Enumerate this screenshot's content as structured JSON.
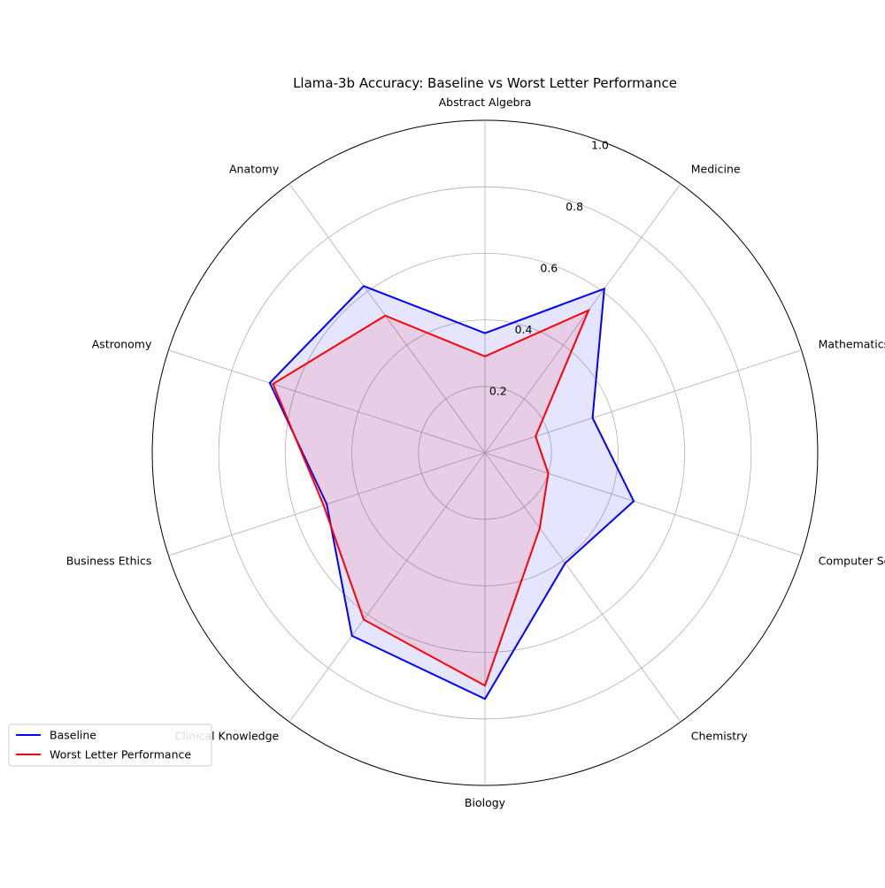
{
  "chart_data": {
    "type": "radar",
    "title": "Llama-3b Accuracy: Baseline vs Worst Letter Performance",
    "categories": [
      "Abstract Algebra",
      "Medicine",
      "Mathematics",
      "Computer Science",
      "Chemistry",
      "Biology",
      "Clinical Knowledge",
      "Business Ethics",
      "Astronomy",
      "Anatomy"
    ],
    "rlim": [
      0,
      1.0
    ],
    "rticks": [
      0.2,
      0.4,
      0.6,
      0.8,
      1.0
    ],
    "rtick_labels": [
      "0.2",
      "0.4",
      "0.6",
      "0.8",
      "1.0"
    ],
    "grid": true,
    "legend_position": "lower-left",
    "series": [
      {
        "name": "Baseline",
        "color": "#0000ff",
        "fill": "#0000ff",
        "fill_opacity": 0.1,
        "values": [
          0.36,
          0.61,
          0.34,
          0.47,
          0.41,
          0.74,
          0.68,
          0.5,
          0.68,
          0.62
        ]
      },
      {
        "name": "Worst Letter Performance",
        "color": "#ff0000",
        "fill": "#ff0000",
        "fill_opacity": 0.1,
        "values": [
          0.29,
          0.53,
          0.16,
          0.2,
          0.28,
          0.7,
          0.62,
          0.51,
          0.67,
          0.51
        ]
      }
    ]
  }
}
